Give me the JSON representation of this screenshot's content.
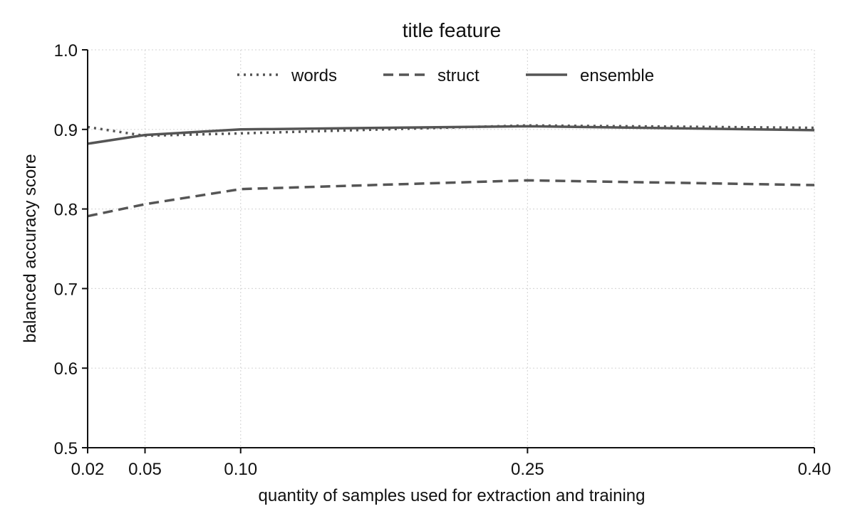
{
  "chart_data": {
    "type": "line",
    "title": "title feature",
    "xlabel": "quantity of samples used for extraction and training",
    "ylabel": "balanced accuracy score",
    "x": [
      0.02,
      0.05,
      0.1,
      0.25,
      0.4
    ],
    "x_tick_labels": [
      "0.02",
      "0.05",
      "0.10",
      "0.25",
      "0.40"
    ],
    "xlim": [
      0.02,
      0.4
    ],
    "ylim": [
      0.5,
      1.0
    ],
    "y_ticks": [
      0.5,
      0.6,
      0.7,
      0.8,
      0.9,
      1.0
    ],
    "y_tick_labels": [
      "0.5",
      "0.6",
      "0.7",
      "0.8",
      "0.9",
      "1.0"
    ],
    "grid": true,
    "legend_position": "top-center",
    "line_color": "#555555",
    "series": [
      {
        "name": "words",
        "style": "dotted",
        "values": [
          0.903,
          0.892,
          0.895,
          0.905,
          0.902
        ]
      },
      {
        "name": "struct",
        "style": "dashed",
        "values": [
          0.791,
          0.806,
          0.825,
          0.836,
          0.83
        ]
      },
      {
        "name": "ensemble",
        "style": "solid",
        "values": [
          0.882,
          0.893,
          0.9,
          0.904,
          0.899
        ]
      }
    ]
  }
}
